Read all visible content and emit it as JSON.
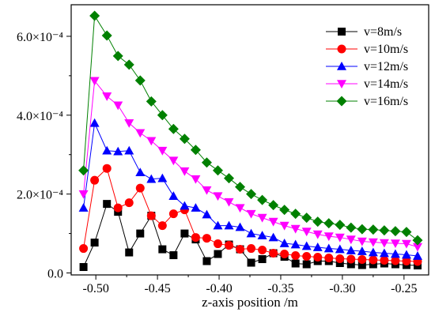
{
  "chart_data": {
    "type": "line",
    "xlabel": "z-axis position /m",
    "ylabel": "",
    "xlim": [
      -0.52,
      -0.23
    ],
    "ylim": [
      -5e-06,
      0.00068
    ],
    "x_ticks": [
      -0.5,
      -0.45,
      -0.4,
      -0.35,
      -0.3,
      -0.25
    ],
    "x_tick_labels": [
      "-0.50",
      "-0.45",
      "-0.40",
      "-0.35",
      "-0.30",
      "-0.25"
    ],
    "y_ticks": [
      0,
      0.0002,
      0.0004,
      0.0006
    ],
    "y_tick_labels": [
      "0.0",
      "2.0×10⁻⁴",
      "4.0×10⁻⁴",
      "6.0×10⁻⁴"
    ],
    "legend_position": "top-right",
    "grid": false,
    "x": [
      -0.51,
      -0.501,
      -0.491,
      -0.482,
      -0.473,
      -0.464,
      -0.455,
      -0.446,
      -0.437,
      -0.428,
      -0.419,
      -0.41,
      -0.401,
      -0.392,
      -0.383,
      -0.374,
      -0.365,
      -0.356,
      -0.347,
      -0.338,
      -0.329,
      -0.32,
      -0.311,
      -0.302,
      -0.293,
      -0.284,
      -0.275,
      -0.266,
      -0.257,
      -0.248,
      -0.239
    ],
    "series": [
      {
        "name": "v=8m/s",
        "marker": "square",
        "color": "#000000",
        "values": [
          1.5e-05,
          7.7e-05,
          0.000175,
          0.000155,
          5.2e-05,
          0.0001,
          0.000145,
          6e-05,
          4.5e-05,
          0.0001,
          8.5e-05,
          3e-05,
          4.8e-05,
          7.2e-05,
          6e-05,
          2.6e-05,
          3.5e-05,
          5e-05,
          4.1e-05,
          2.4e-05,
          2.2e-05,
          3e-05,
          3e-05,
          2.5e-05,
          2.2e-05,
          2e-05,
          2.2e-05,
          2.4e-05,
          2.2e-05,
          2e-05,
          1.9e-05
        ]
      },
      {
        "name": "v=10m/s",
        "marker": "circle",
        "color": "#ff0000",
        "values": [
          6.2e-05,
          0.000235,
          0.000265,
          0.000165,
          0.000178,
          0.000215,
          0.000145,
          0.00012,
          0.00015,
          0.00016,
          9e-05,
          8.8e-05,
          7.4e-05,
          7e-05,
          6e-05,
          6.2e-05,
          5.8e-05,
          5e-05,
          4.8e-05,
          4.4e-05,
          4.2e-05,
          4e-05,
          3.8e-05,
          3.6e-05,
          3.5e-05,
          3.4e-05,
          3.3e-05,
          3.2e-05,
          3.1e-05,
          3e-05,
          2.9e-05
        ]
      },
      {
        "name": "v=12m/s",
        "marker": "triangle-up",
        "color": "#0000ff",
        "values": [
          0.000165,
          0.00038,
          0.00031,
          0.000308,
          0.00031,
          0.000255,
          0.000238,
          0.00024,
          0.000195,
          0.00017,
          0.000165,
          0.000148,
          0.00012,
          0.00012,
          0.000116,
          0.0001,
          9.5e-05,
          9e-05,
          7.5e-05,
          7.2e-05,
          6.8e-05,
          6.5e-05,
          6.2e-05,
          6e-05,
          5.7e-05,
          5.5e-05,
          5.2e-05,
          5e-05,
          4.8e-05,
          4.6e-05,
          4.3e-05
        ]
      },
      {
        "name": "v=14m/s",
        "marker": "triangle-down",
        "color": "#ff00ff",
        "values": [
          0.0002,
          0.000487,
          0.000448,
          0.000425,
          0.00038,
          0.000355,
          0.000335,
          0.00031,
          0.000285,
          0.000258,
          0.000238,
          0.00021,
          0.000195,
          0.00018,
          0.000165,
          0.00015,
          0.00014,
          0.00013,
          0.00012,
          0.000112,
          0.000105,
          9.8e-05,
          9.3e-05,
          9e-05,
          8.5e-05,
          8e-05,
          7.8e-05,
          7.6e-05,
          7.5e-05,
          7.4e-05,
          6.6e-05
        ]
      },
      {
        "name": "v=16m/s",
        "marker": "diamond",
        "color": "#008000",
        "values": [
          0.00026,
          0.000652,
          0.000602,
          0.00055,
          0.000528,
          0.000488,
          0.000435,
          0.0004,
          0.000365,
          0.00034,
          0.000312,
          0.00028,
          0.00026,
          0.00024,
          0.000218,
          0.0002,
          0.000185,
          0.000172,
          0.00016,
          0.00015,
          0.00014,
          0.00013,
          0.000126,
          0.000122,
          0.000115,
          0.000111,
          0.00011,
          0.000108,
          0.000106,
          0.000104,
          8.3e-05
        ]
      }
    ]
  }
}
